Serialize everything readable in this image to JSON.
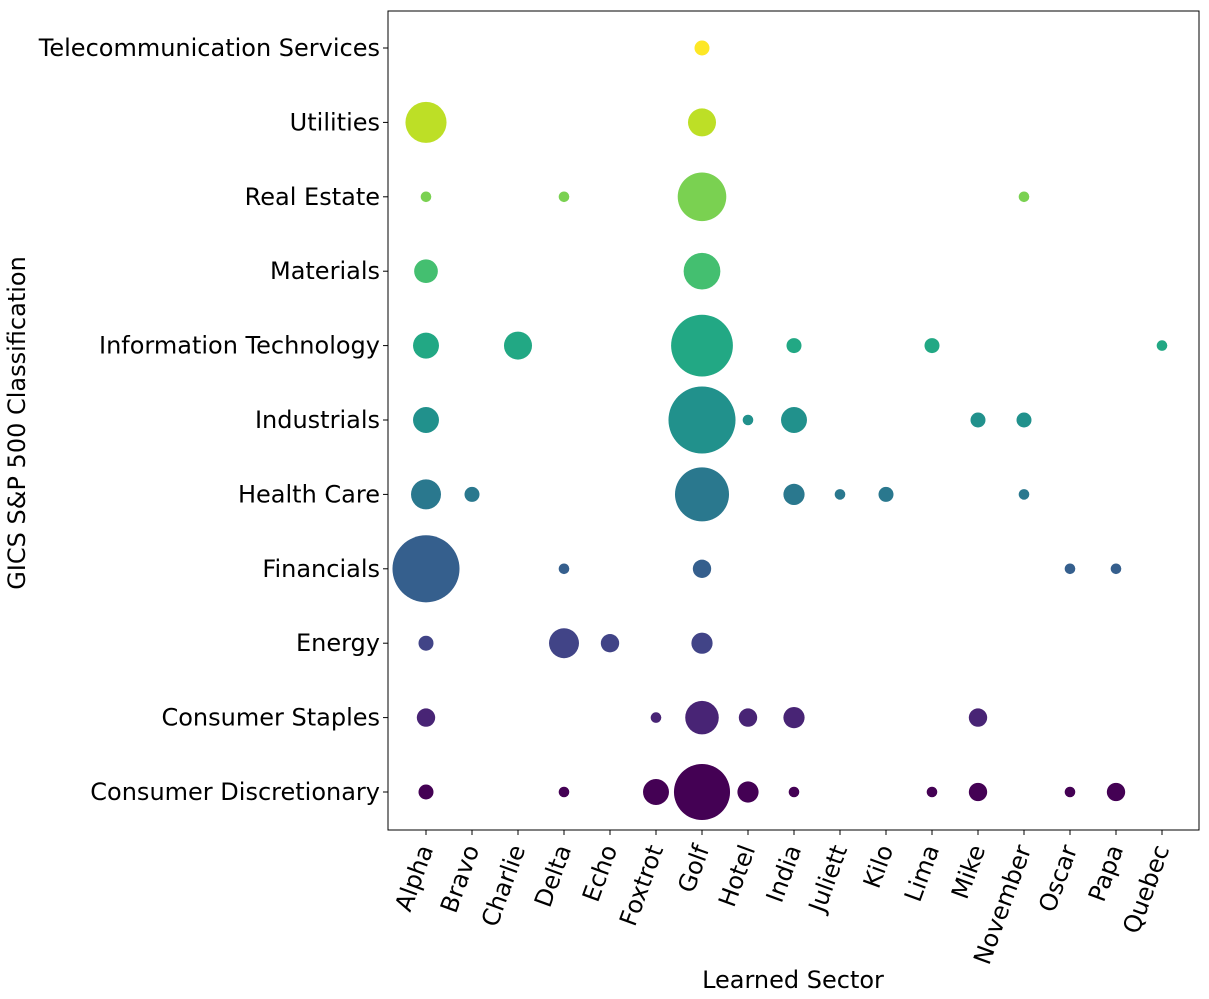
{
  "chart_data": {
    "type": "scatter",
    "xlabel": "Learned Sector",
    "ylabel": "GICS S&P 500 Classification",
    "x_categories": [
      "Alpha",
      "Bravo",
      "Charlie",
      "Delta",
      "Echo",
      "Foxtrot",
      "Golf",
      "Hotel",
      "India",
      "Juliett",
      "Kilo",
      "Lima",
      "Mike",
      "November",
      "Oscar",
      "Papa",
      "Quebec"
    ],
    "y_categories": [
      "Consumer Discretionary",
      "Consumer Staples",
      "Energy",
      "Financials",
      "Health Care",
      "Industrials",
      "Information Technology",
      "Materials",
      "Real Estate",
      "Utilities",
      "Telecommunication Services"
    ],
    "colors": [
      "#440154",
      "#482475",
      "#414487",
      "#355f8d",
      "#2a788e",
      "#21918c",
      "#22a884",
      "#44bf70",
      "#7ad151",
      "#bddf26",
      "#fde725"
    ],
    "size_encoding": "bubble area proportional to company count (estimated)",
    "points": [
      {
        "x": "Alpha",
        "y": "Consumer Discretionary",
        "count": 2
      },
      {
        "x": "Delta",
        "y": "Consumer Discretionary",
        "count": 1
      },
      {
        "x": "Foxtrot",
        "y": "Consumer Discretionary",
        "count": 6
      },
      {
        "x": "Golf",
        "y": "Consumer Discretionary",
        "count": 28
      },
      {
        "x": "Hotel",
        "y": "Consumer Discretionary",
        "count": 4
      },
      {
        "x": "India",
        "y": "Consumer Discretionary",
        "count": 1
      },
      {
        "x": "Lima",
        "y": "Consumer Discretionary",
        "count": 1
      },
      {
        "x": "Mike",
        "y": "Consumer Discretionary",
        "count": 3
      },
      {
        "x": "Oscar",
        "y": "Consumer Discretionary",
        "count": 1
      },
      {
        "x": "Papa",
        "y": "Consumer Discretionary",
        "count": 3
      },
      {
        "x": "Alpha",
        "y": "Consumer Staples",
        "count": 3
      },
      {
        "x": "Foxtrot",
        "y": "Consumer Staples",
        "count": 1
      },
      {
        "x": "Golf",
        "y": "Consumer Staples",
        "count": 10
      },
      {
        "x": "Hotel",
        "y": "Consumer Staples",
        "count": 3
      },
      {
        "x": "India",
        "y": "Consumer Staples",
        "count": 4
      },
      {
        "x": "Mike",
        "y": "Consumer Staples",
        "count": 3
      },
      {
        "x": "Alpha",
        "y": "Energy",
        "count": 2
      },
      {
        "x": "Delta",
        "y": "Energy",
        "count": 8
      },
      {
        "x": "Echo",
        "y": "Energy",
        "count": 3
      },
      {
        "x": "Golf",
        "y": "Energy",
        "count": 4
      },
      {
        "x": "Alpha",
        "y": "Financials",
        "count": 40
      },
      {
        "x": "Delta",
        "y": "Financials",
        "count": 1
      },
      {
        "x": "Golf",
        "y": "Financials",
        "count": 3
      },
      {
        "x": "Oscar",
        "y": "Financials",
        "count": 1
      },
      {
        "x": "Papa",
        "y": "Financials",
        "count": 1
      },
      {
        "x": "Alpha",
        "y": "Health Care",
        "count": 8
      },
      {
        "x": "Bravo",
        "y": "Health Care",
        "count": 2
      },
      {
        "x": "Golf",
        "y": "Health Care",
        "count": 26
      },
      {
        "x": "India",
        "y": "Health Care",
        "count": 4
      },
      {
        "x": "Juliett",
        "y": "Health Care",
        "count": 1
      },
      {
        "x": "Kilo",
        "y": "Health Care",
        "count": 2
      },
      {
        "x": "November",
        "y": "Health Care",
        "count": 1
      },
      {
        "x": "Alpha",
        "y": "Industrials",
        "count": 6
      },
      {
        "x": "Golf",
        "y": "Industrials",
        "count": 40
      },
      {
        "x": "Hotel",
        "y": "Industrials",
        "count": 1
      },
      {
        "x": "India",
        "y": "Industrials",
        "count": 6
      },
      {
        "x": "Mike",
        "y": "Industrials",
        "count": 2
      },
      {
        "x": "November",
        "y": "Industrials",
        "count": 2
      },
      {
        "x": "Alpha",
        "y": "Information Technology",
        "count": 6
      },
      {
        "x": "Charlie",
        "y": "Information Technology",
        "count": 7
      },
      {
        "x": "Golf",
        "y": "Information Technology",
        "count": 34
      },
      {
        "x": "India",
        "y": "Information Technology",
        "count": 2
      },
      {
        "x": "Lima",
        "y": "Information Technology",
        "count": 2
      },
      {
        "x": "Quebec",
        "y": "Information Technology",
        "count": 1
      },
      {
        "x": "Alpha",
        "y": "Materials",
        "count": 5
      },
      {
        "x": "Golf",
        "y": "Materials",
        "count": 12
      },
      {
        "x": "Alpha",
        "y": "Real Estate",
        "count": 1
      },
      {
        "x": "Delta",
        "y": "Real Estate",
        "count": 1
      },
      {
        "x": "Golf",
        "y": "Real Estate",
        "count": 21
      },
      {
        "x": "November",
        "y": "Real Estate",
        "count": 1
      },
      {
        "x": "Alpha",
        "y": "Utilities",
        "count": 15
      },
      {
        "x": "Golf",
        "y": "Utilities",
        "count": 7
      },
      {
        "x": "Golf",
        "y": "Telecommunication Services",
        "count": 2
      }
    ]
  }
}
